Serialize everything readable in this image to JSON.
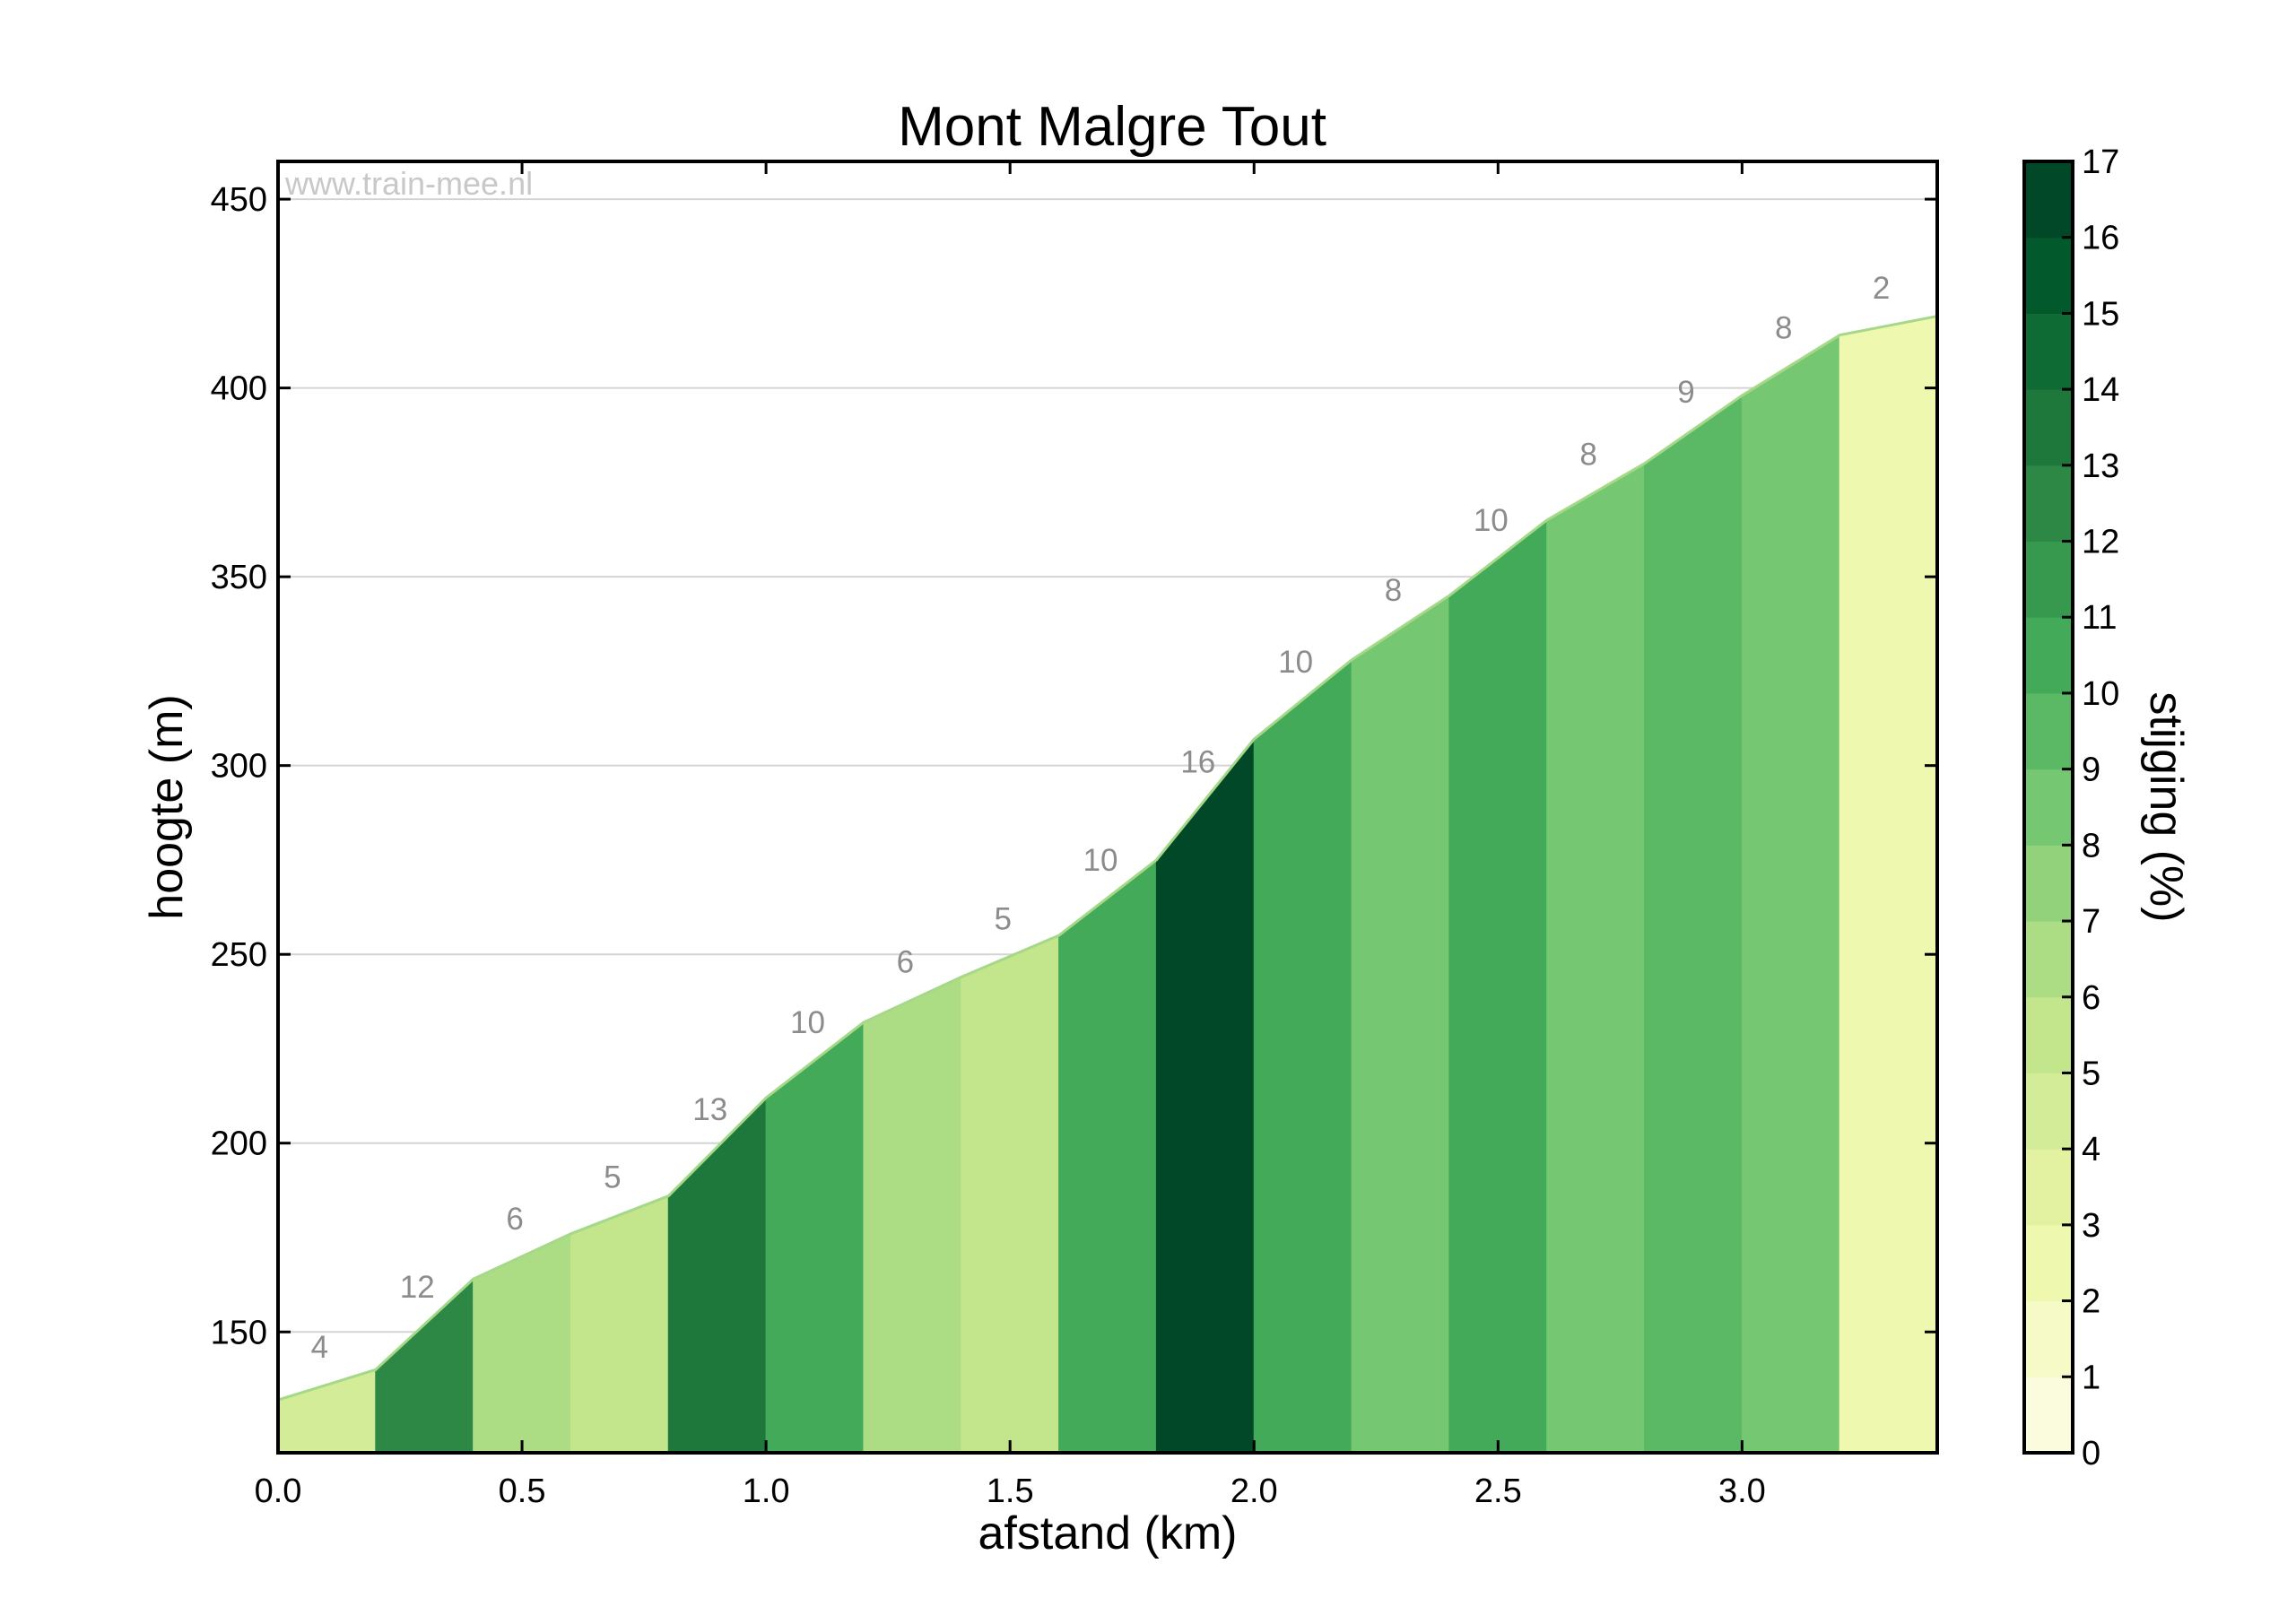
{
  "chart_data": {
    "type": "area",
    "title": "Mont Malgre Tout",
    "watermark": "www.train-mee.nl",
    "xlabel": "afstand (km)",
    "ylabel": "hoogte (m)",
    "xlim": [
      0,
      3.4
    ],
    "ylim": [
      118,
      460
    ],
    "xticks": [
      0.0,
      0.5,
      1.0,
      1.5,
      2.0,
      2.5,
      3.0
    ],
    "xtick_labels": [
      "0.0",
      "0.5",
      "1.0",
      "1.5",
      "2.0",
      "2.5",
      "3.0"
    ],
    "yticks": [
      150,
      200,
      250,
      300,
      350,
      400,
      450
    ],
    "ytick_labels": [
      "150",
      "200",
      "250",
      "300",
      "350",
      "400",
      "450"
    ],
    "grid": "horizontal",
    "x": [
      0.0,
      0.2,
      0.4,
      0.6,
      0.8,
      1.0,
      1.2,
      1.4,
      1.6,
      1.8,
      2.0,
      2.2,
      2.4,
      2.6,
      2.8,
      3.0,
      3.2,
      3.4
    ],
    "elevation": [
      132,
      140,
      164,
      176,
      186,
      212,
      232,
      244,
      255,
      275,
      307,
      328,
      345,
      365,
      380,
      398,
      414,
      419
    ],
    "gradient_labels": [
      "4",
      "12",
      "6",
      "5",
      "13",
      "10",
      "6",
      "5",
      "10",
      "16",
      "10",
      "8",
      "10",
      "8",
      "9",
      "8",
      "2"
    ],
    "gradients": [
      4,
      12,
      6,
      5,
      13,
      10,
      6,
      5,
      10,
      16,
      10,
      8,
      10,
      8,
      9,
      8,
      2
    ],
    "colorbar": {
      "label": "stijging (%)",
      "min": 0,
      "max": 17,
      "ticks": [
        0,
        1,
        2,
        3,
        4,
        5,
        6,
        7,
        8,
        9,
        10,
        11,
        12,
        13,
        14,
        15,
        16,
        17
      ],
      "tick_labels": [
        "0",
        "1",
        "2",
        "3",
        "4",
        "5",
        "6",
        "7",
        "8",
        "9",
        "10",
        "11",
        "12",
        "13",
        "14",
        "15",
        "16",
        "17"
      ],
      "colors": [
        "#fbfbdd",
        "#f6fac6",
        "#eff8af",
        "#e2f2a1",
        "#d3ec97",
        "#c3e58c",
        "#acdd84",
        "#91d27b",
        "#75c771",
        "#5bb966",
        "#42aa58",
        "#36994e",
        "#2d8846",
        "#1e783b",
        "#0f6b34",
        "#02592c",
        "#004827",
        "#003a21"
      ]
    }
  }
}
